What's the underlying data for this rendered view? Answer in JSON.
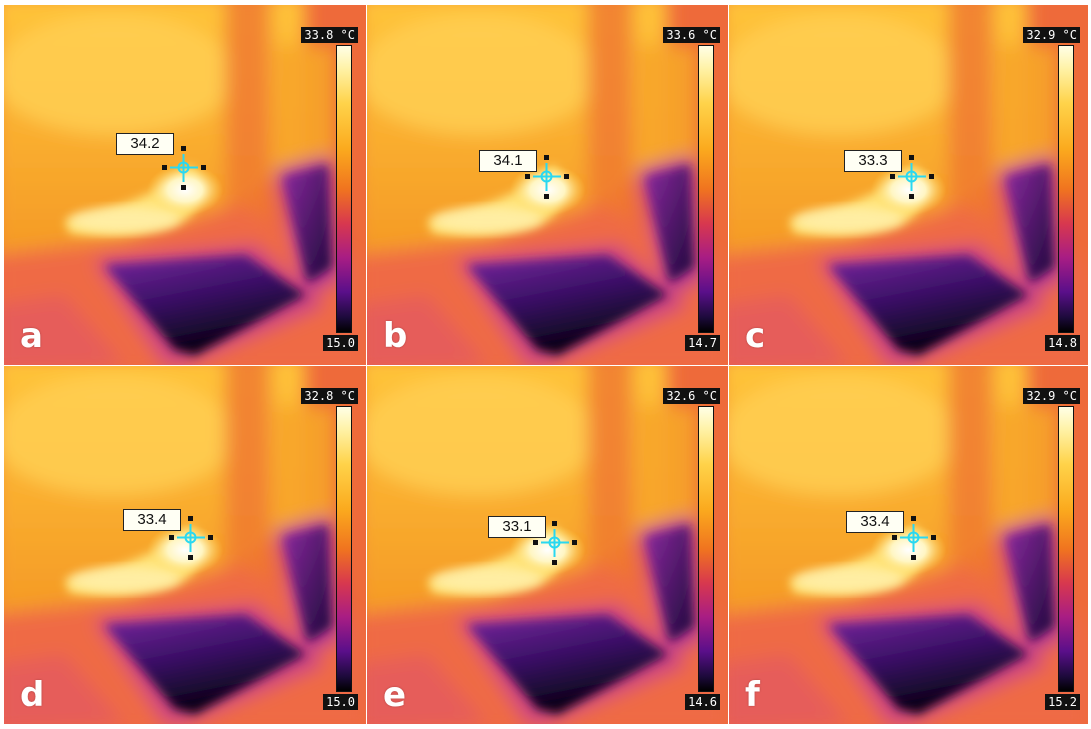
{
  "colors": {
    "thermal_hot": "#fffbe0",
    "thermal_warm": "#fbb21e",
    "thermal_mid": "#f0741f",
    "thermal_magenta": "#c42a7e",
    "thermal_cold": "#0a0420",
    "crosshair": "#2ad8f0",
    "label_bg": "#fffff4"
  },
  "icons": {
    "crosshair": "spot-meter-crosshair-icon"
  },
  "panels": [
    {
      "letter": "a",
      "scale_max": "33.8 °C",
      "scale_min": "15.0",
      "spot_value": "34.2"
    },
    {
      "letter": "b",
      "scale_max": "33.6 °C",
      "scale_min": "14.7",
      "spot_value": "34.1"
    },
    {
      "letter": "c",
      "scale_max": "32.9 °C",
      "scale_min": "14.8",
      "spot_value": "33.3"
    },
    {
      "letter": "d",
      "scale_max": "32.8 °C",
      "scale_min": "15.0",
      "spot_value": "33.4"
    },
    {
      "letter": "e",
      "scale_max": "32.6 °C",
      "scale_min": "14.6",
      "spot_value": "33.1"
    },
    {
      "letter": "f",
      "scale_max": "32.9 °C",
      "scale_min": "15.2",
      "spot_value": "33.4"
    }
  ]
}
